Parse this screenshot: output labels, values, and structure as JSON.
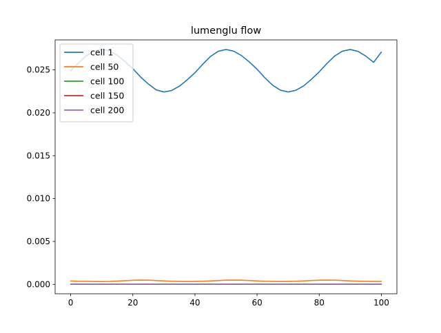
{
  "chart_data": {
    "type": "line",
    "title": "lumenglu flow",
    "xlabel": "",
    "ylabel": "",
    "xlim": [
      -5,
      105
    ],
    "ylim": [
      -0.0011,
      0.0285
    ],
    "x_ticks": [
      0,
      20,
      40,
      60,
      80,
      100
    ],
    "y_ticks": [
      0.0,
      0.005,
      0.01,
      0.015,
      0.02,
      0.025
    ],
    "x_tick_labels": [
      "0",
      "20",
      "40",
      "60",
      "80",
      "100"
    ],
    "y_tick_labels": [
      "0.000",
      "0.005",
      "0.010",
      "0.015",
      "0.020",
      "0.025"
    ],
    "grid": false,
    "legend_position": "upper left",
    "x": [
      0,
      2.5,
      5,
      7.5,
      10,
      12.5,
      15,
      17.5,
      20,
      22.5,
      25,
      27.5,
      30,
      32.5,
      35,
      37.5,
      40,
      42.5,
      45,
      47.5,
      50,
      52.5,
      55,
      57.5,
      60,
      62.5,
      65,
      67.5,
      70,
      72.5,
      75,
      77.5,
      80,
      82.5,
      85,
      87.5,
      90,
      92.5,
      95,
      97.5,
      100
    ],
    "series": [
      {
        "name": "cell 1",
        "color": "#1f77b4",
        "values": [
          0.0249,
          0.02582,
          0.02663,
          0.02719,
          0.0274,
          0.02722,
          0.02671,
          0.02597,
          0.02515,
          0.02418,
          0.02336,
          0.02268,
          0.02243,
          0.0226,
          0.02311,
          0.02384,
          0.02467,
          0.02566,
          0.02657,
          0.02717,
          0.02738,
          0.02718,
          0.02667,
          0.02593,
          0.02508,
          0.02408,
          0.02322,
          0.02264,
          0.02243,
          0.02263,
          0.02314,
          0.02391,
          0.02477,
          0.02576,
          0.02663,
          0.02719,
          0.02738,
          0.02716,
          0.02661,
          0.02588,
          0.02708
        ]
      },
      {
        "name": "cell 50",
        "color": "#ff7f0e",
        "values": [
          0.0004,
          0.00036,
          0.00035,
          0.00033,
          0.00033,
          0.00034,
          0.00038,
          0.00043,
          0.00048,
          0.0005,
          0.00049,
          0.00045,
          0.0004,
          0.00036,
          0.00034,
          0.00033,
          0.00034,
          0.00036,
          0.0004,
          0.00045,
          0.00049,
          0.0005,
          0.00049,
          0.00045,
          0.0004,
          0.00036,
          0.00034,
          0.00033,
          0.00034,
          0.00036,
          0.0004,
          0.00045,
          0.00049,
          0.0005,
          0.00049,
          0.00045,
          0.0004,
          0.00037,
          0.00035,
          0.00034,
          0.00035
        ]
      },
      {
        "name": "cell 100",
        "color": "#2ca02c",
        "values": [
          2e-05,
          2e-05,
          2e-05,
          2e-05,
          2e-05,
          2e-05,
          2e-05,
          2e-05,
          2e-05,
          2e-05,
          2e-05,
          2e-05,
          2e-05,
          2e-05,
          2e-05,
          2e-05,
          2e-05,
          2e-05,
          2e-05,
          2e-05,
          2e-05,
          2e-05,
          2e-05,
          2e-05,
          2e-05,
          2e-05,
          2e-05,
          2e-05,
          2e-05,
          2e-05,
          2e-05,
          2e-05,
          2e-05,
          2e-05,
          2e-05,
          2e-05,
          2e-05,
          2e-05,
          2e-05,
          2e-05,
          2e-05
        ]
      },
      {
        "name": "cell 150",
        "color": "#d62728",
        "values": [
          1e-05,
          1e-05,
          1e-05,
          1e-05,
          1e-05,
          1e-05,
          1e-05,
          1e-05,
          1e-05,
          1e-05,
          1e-05,
          1e-05,
          1e-05,
          1e-05,
          1e-05,
          1e-05,
          1e-05,
          1e-05,
          1e-05,
          1e-05,
          1e-05,
          1e-05,
          1e-05,
          1e-05,
          1e-05,
          1e-05,
          1e-05,
          1e-05,
          1e-05,
          1e-05,
          1e-05,
          1e-05,
          1e-05,
          1e-05,
          1e-05,
          1e-05,
          1e-05,
          1e-05,
          1e-05,
          1e-05,
          1e-05
        ]
      },
      {
        "name": "cell 200",
        "color": "#9467bd",
        "values": [
          1e-05,
          1e-05,
          1e-05,
          1e-05,
          1e-05,
          1e-05,
          1e-05,
          1e-05,
          1e-05,
          1e-05,
          1e-05,
          1e-05,
          1e-05,
          1e-05,
          1e-05,
          1e-05,
          1e-05,
          1e-05,
          1e-05,
          1e-05,
          1e-05,
          1e-05,
          1e-05,
          1e-05,
          1e-05,
          1e-05,
          1e-05,
          1e-05,
          1e-05,
          1e-05,
          1e-05,
          1e-05,
          1e-05,
          1e-05,
          1e-05,
          1e-05,
          1e-05,
          1e-05,
          1e-05,
          1e-05,
          1e-05
        ]
      }
    ]
  }
}
